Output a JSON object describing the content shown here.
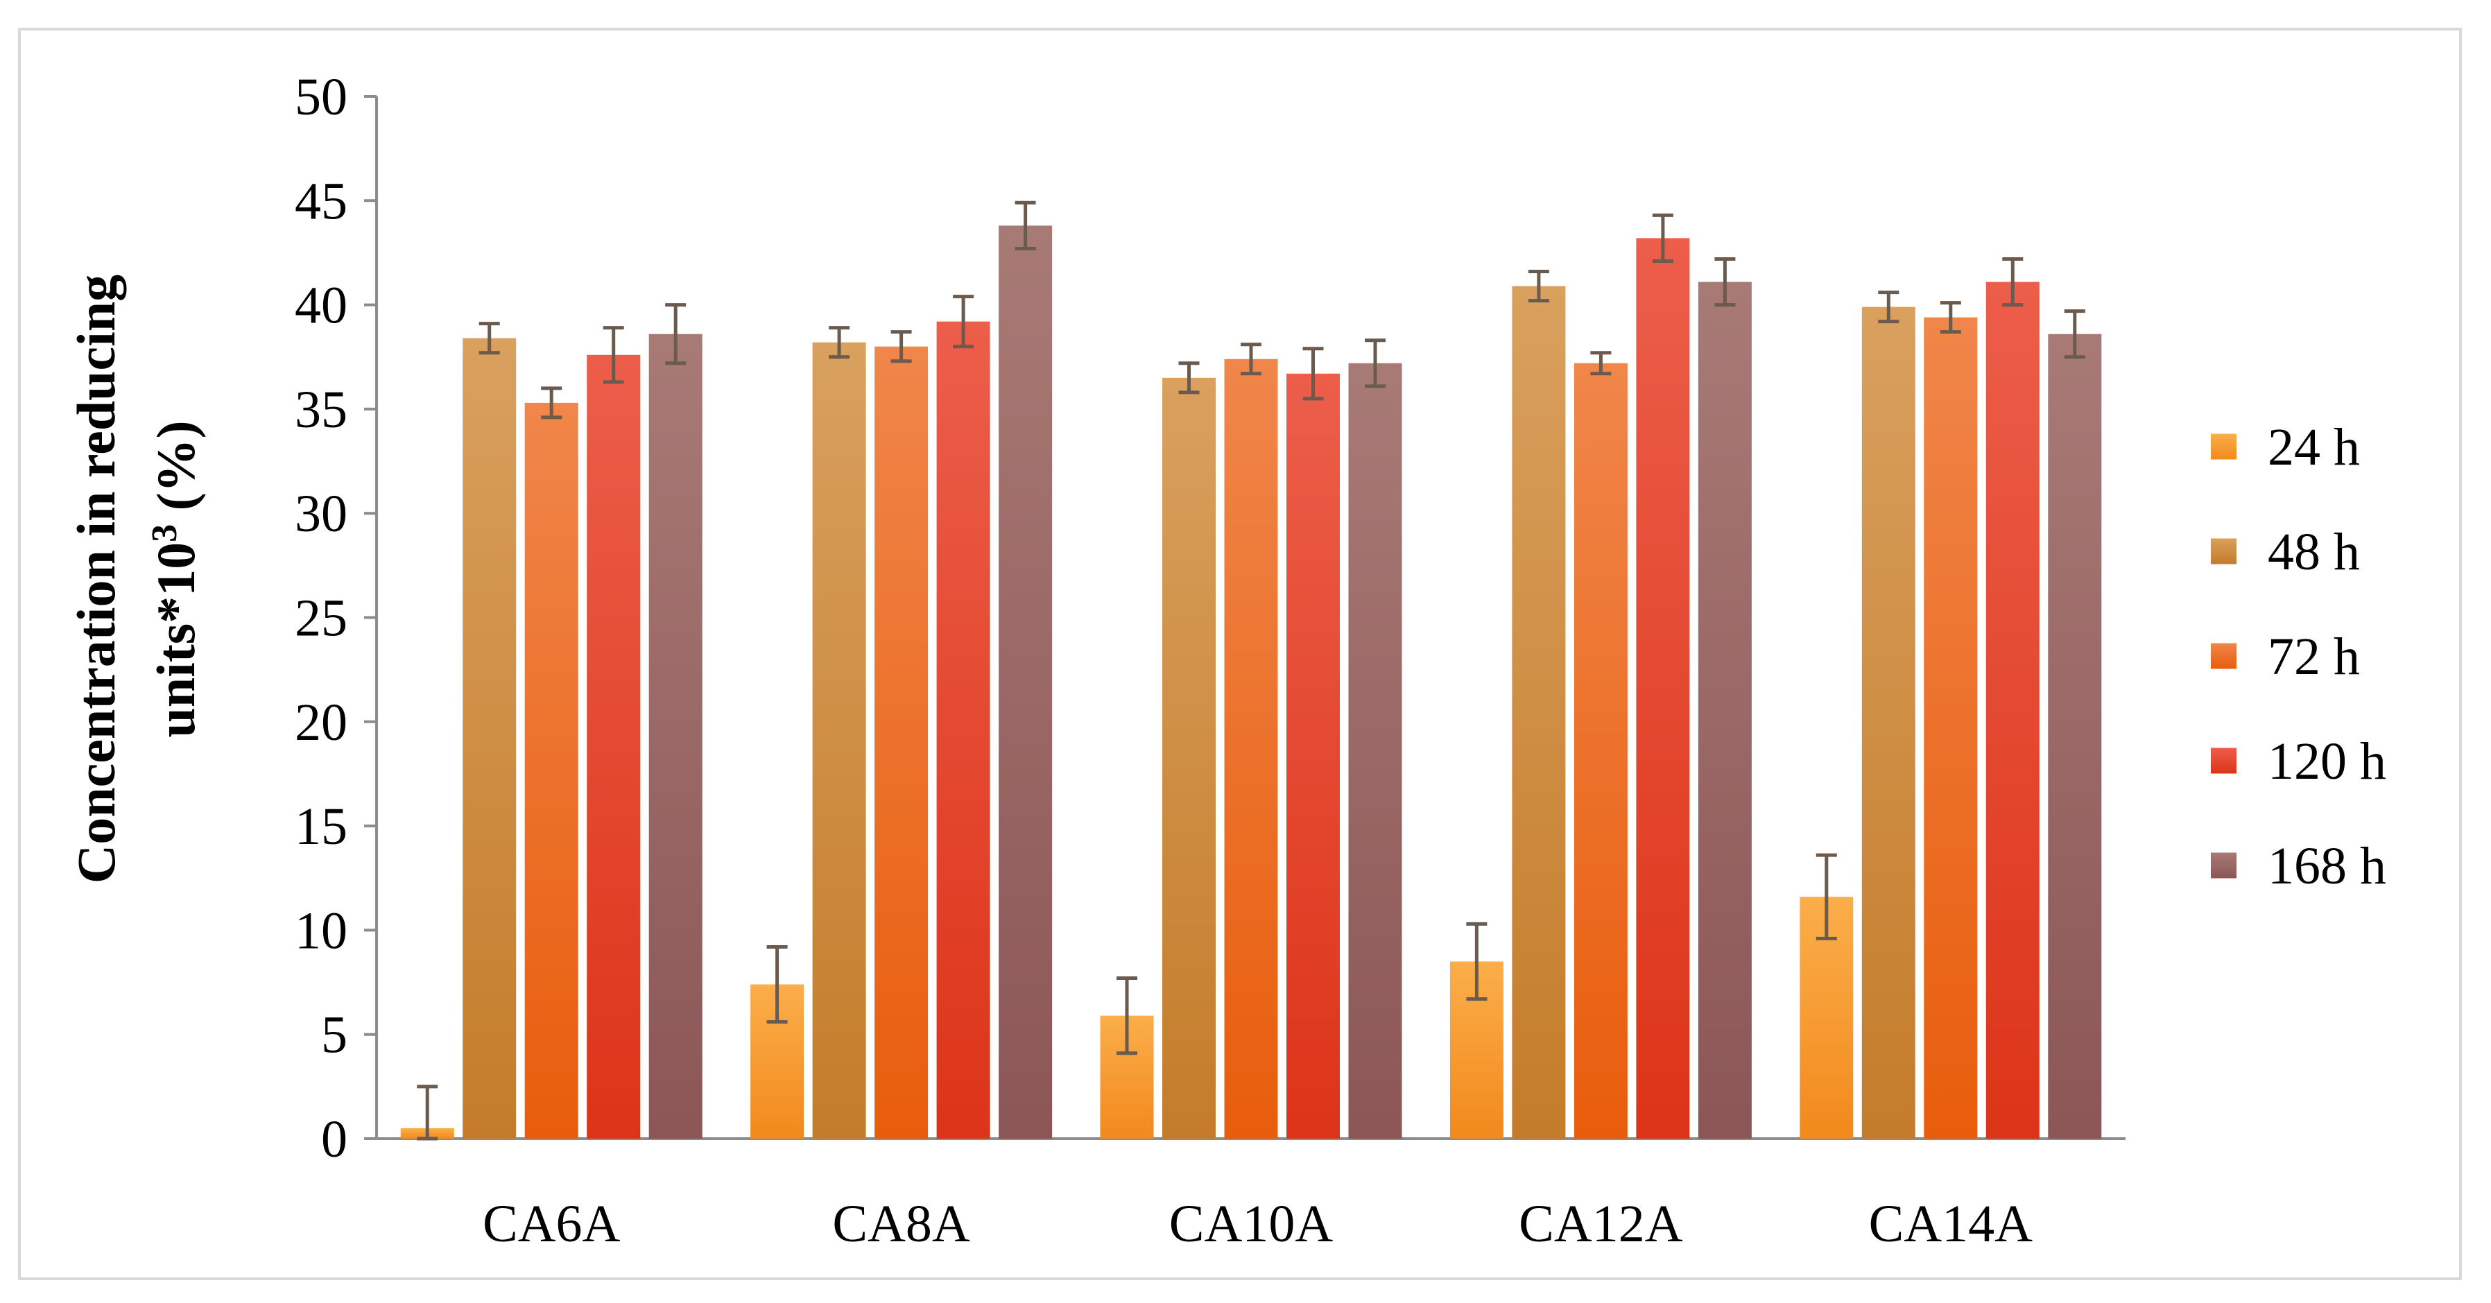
{
  "chart_data": {
    "type": "bar",
    "title": "",
    "xlabel": "",
    "ylabel": {
      "line1": "Concentration in reducing",
      "line2_prefix": "units*10",
      "line2_sup": "3",
      "line2_suffix": " (%)"
    },
    "ylim": [
      0,
      50
    ],
    "yticks": [
      0,
      5,
      10,
      15,
      20,
      25,
      30,
      35,
      40,
      45,
      50
    ],
    "grid": false,
    "legend_position": "right",
    "categories": [
      "CA6A",
      "CA8A",
      "CA10A",
      "CA12A",
      "CA14A"
    ],
    "series": [
      {
        "name": "24 h",
        "color_top": "#fbae4a",
        "color_bottom": "#f2891c",
        "values": [
          0.5,
          7.4,
          5.9,
          8.5,
          11.6
        ],
        "errors": [
          2.0,
          1.8,
          1.8,
          1.8,
          2.0
        ]
      },
      {
        "name": "48 h",
        "color_top": "#d9a05e",
        "color_bottom": "#c47c2a",
        "values": [
          38.4,
          38.2,
          36.5,
          40.9,
          39.9
        ],
        "errors": [
          0.7,
          0.7,
          0.7,
          0.7,
          0.7
        ]
      },
      {
        "name": "72 h",
        "color_top": "#f0864a",
        "color_bottom": "#e85d0c",
        "values": [
          35.3,
          38.0,
          37.4,
          37.2,
          39.4
        ],
        "errors": [
          0.7,
          0.7,
          0.7,
          0.5,
          0.7
        ]
      },
      {
        "name": "120 h",
        "color_top": "#ec5e4a",
        "color_bottom": "#dc3418",
        "values": [
          37.6,
          39.2,
          36.7,
          43.2,
          41.1
        ],
        "errors": [
          1.3,
          1.2,
          1.2,
          1.1,
          1.1
        ]
      },
      {
        "name": "168 h",
        "color_top": "#a87a76",
        "color_bottom": "#8c5656",
        "values": [
          38.6,
          43.8,
          37.2,
          41.1,
          38.6
        ],
        "errors": [
          1.4,
          1.1,
          1.1,
          1.1,
          1.1
        ]
      }
    ],
    "errorbar_color": "#6b5a4e"
  }
}
